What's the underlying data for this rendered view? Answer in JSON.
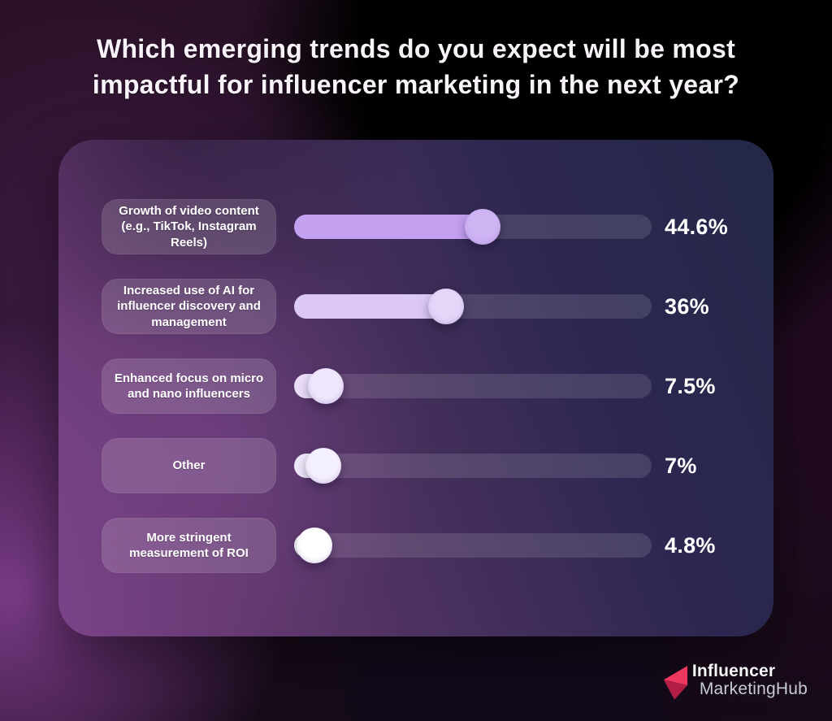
{
  "title": "Which emerging trends do you expect will be most impactful for influencer marketing in the next year?",
  "chart_data": {
    "type": "bar",
    "orientation": "horizontal",
    "style": "slider-infographic",
    "title": "Which emerging trends do you expect will be most impactful for influencer marketing in the next year?",
    "categories": [
      "Growth of video content (e.g., TikTok, Instagram Reels)",
      "Increased use of AI for influencer discovery and management",
      "Enhanced focus on micro and nano influencers",
      "Other",
      "More stringent measurement of ROI"
    ],
    "values": [
      44.6,
      36,
      7.5,
      7,
      4.8
    ],
    "value_labels": [
      "44.6%",
      "36%",
      "7.5%",
      "7%",
      "4.8%"
    ],
    "xlim": [
      0,
      100
    ],
    "display_scale": 1.18,
    "grid": false,
    "legend": false,
    "row_styles": [
      {
        "fill": "#c4a0f0",
        "knob": "#cfb4f4"
      },
      {
        "fill": "#dcc8f7",
        "knob": "#e3d6f9"
      },
      {
        "fill": "#eadef9",
        "knob": "#efe7fc"
      },
      {
        "fill": "#f0e8fb",
        "knob": "#f5f0fd"
      },
      {
        "fill": "#fbf9fe",
        "knob": "#ffffff"
      }
    ],
    "track_color": "rgba(255,255,255,0.12)"
  },
  "logo": {
    "line1": "Influencer",
    "line2": "MarketingHub",
    "icon": "arrow-left-fold-icon",
    "brand_color": "#ef2e5d",
    "brand_color_dark": "#b01d45"
  },
  "colors": {
    "text": "#ffffff",
    "card_gradient_left": "#7c4389",
    "card_gradient_right": "#232746",
    "background_base": "#150a17"
  }
}
